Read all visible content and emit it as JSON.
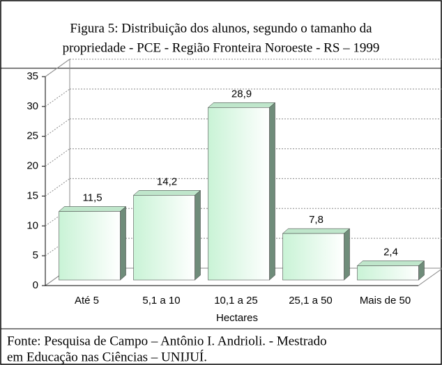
{
  "chart_data": {
    "type": "bar",
    "title": [
      "Figura 5: Distribuição dos alunos, segundo o  tamanho  da",
      "propriedade - PCE - Região Fronteira Noroeste - RS – 1999"
    ],
    "categories": [
      "Até 5",
      "5,1 a 10",
      "10,1 a 25",
      "25,1 a 50",
      "Mais de 50"
    ],
    "values": [
      11.5,
      14.2,
      28.9,
      7.8,
      2.4
    ],
    "value_labels": [
      "11,5",
      "14,2",
      "28,9",
      "7,8",
      "2,4"
    ],
    "x_label": "Hectares",
    "ylim": [
      0,
      35
    ],
    "yticks": [
      0,
      5,
      10,
      15,
      20,
      25,
      30,
      35
    ],
    "grid": true,
    "color": "#e2fbe9",
    "source": [
      "Fonte: Pesquisa de Campo – Antônio I. Andrioli. - Mestrado",
      "em Educação nas Ciências – UNIJUÍ."
    ]
  }
}
